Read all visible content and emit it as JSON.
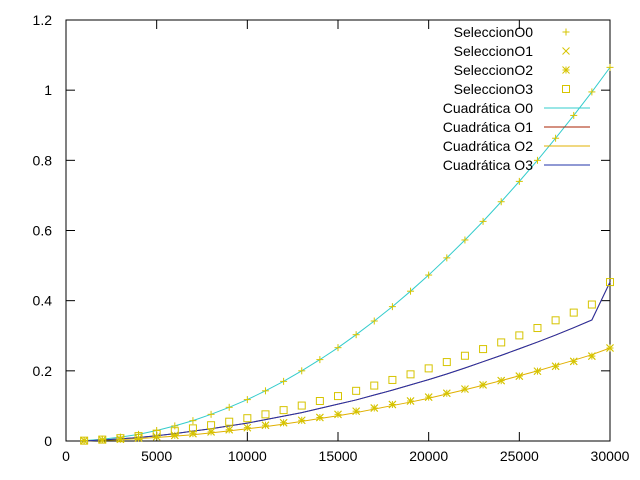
{
  "chart_data": {
    "type": "line",
    "title": "",
    "xlabel": "",
    "ylabel": "",
    "xlim": [
      0,
      30000
    ],
    "ylim": [
      0,
      1.2
    ],
    "grid": false,
    "legend_position": "top-right",
    "x_ticks": [
      0,
      5000,
      10000,
      15000,
      20000,
      25000,
      30000
    ],
    "x_tick_labels": [
      "0",
      "5000",
      "10000",
      "15000",
      "20000",
      "25000",
      "30000"
    ],
    "y_ticks": [
      0,
      0.2,
      0.4,
      0.6,
      0.8,
      1.0,
      1.2
    ],
    "y_tick_labels": [
      "0",
      "0.2",
      "0.4",
      "0.6",
      "0.8",
      "1",
      "1.2"
    ],
    "x": [
      1000,
      2000,
      3000,
      4000,
      5000,
      6000,
      7000,
      8000,
      9000,
      10000,
      11000,
      12000,
      13000,
      14000,
      15000,
      16000,
      17000,
      18000,
      19000,
      20000,
      21000,
      22000,
      23000,
      24000,
      25000,
      26000,
      27000,
      28000,
      29000,
      30000
    ],
    "series": [
      {
        "name": "SeleccionO0",
        "kind": "points",
        "marker": "plus",
        "color": "#d6c400",
        "values": [
          0.001,
          0.005,
          0.011,
          0.019,
          0.03,
          0.043,
          0.058,
          0.076,
          0.096,
          0.118,
          0.143,
          0.17,
          0.2,
          0.232,
          0.266,
          0.303,
          0.342,
          0.383,
          0.427,
          0.473,
          0.522,
          0.573,
          0.626,
          0.682,
          0.74,
          0.8,
          0.863,
          0.928,
          0.995,
          1.065
        ]
      },
      {
        "name": "SeleccionO1",
        "kind": "points",
        "marker": "cross",
        "color": "#d6c400",
        "values": [
          0.001,
          0.003,
          0.005,
          0.008,
          0.012,
          0.016,
          0.021,
          0.026,
          0.032,
          0.038,
          0.045,
          0.052,
          0.059,
          0.067,
          0.076,
          0.085,
          0.094,
          0.104,
          0.114,
          0.125,
          0.136,
          0.148,
          0.16,
          0.172,
          0.185,
          0.199,
          0.213,
          0.227,
          0.242,
          0.265
        ]
      },
      {
        "name": "SeleccionO2",
        "kind": "points",
        "marker": "star",
        "color": "#d6c400",
        "values": [
          0.001,
          0.003,
          0.005,
          0.008,
          0.012,
          0.016,
          0.021,
          0.026,
          0.032,
          0.038,
          0.045,
          0.052,
          0.059,
          0.067,
          0.076,
          0.085,
          0.094,
          0.104,
          0.114,
          0.125,
          0.136,
          0.148,
          0.16,
          0.172,
          0.185,
          0.199,
          0.213,
          0.227,
          0.242,
          0.265
        ]
      },
      {
        "name": "SeleccionO3",
        "kind": "points",
        "marker": "square",
        "color": "#d6c400",
        "values": [
          0.001,
          0.004,
          0.008,
          0.014,
          0.021,
          0.028,
          0.036,
          0.045,
          0.055,
          0.065,
          0.076,
          0.088,
          0.101,
          0.114,
          0.128,
          0.143,
          0.158,
          0.174,
          0.19,
          0.207,
          0.225,
          0.243,
          0.262,
          0.281,
          0.301,
          0.322,
          0.344,
          0.366,
          0.389,
          0.453
        ]
      },
      {
        "name": "Cuadrática O0",
        "kind": "line",
        "color": "#33cccc",
        "coef": [
          0.0,
          0.0,
          1.183e-09
        ],
        "values": [
          0.001,
          0.005,
          0.011,
          0.019,
          0.03,
          0.043,
          0.058,
          0.076,
          0.096,
          0.118,
          0.143,
          0.17,
          0.2,
          0.232,
          0.266,
          0.303,
          0.342,
          0.383,
          0.427,
          0.473,
          0.522,
          0.573,
          0.626,
          0.682,
          0.74,
          0.8,
          0.863,
          0.928,
          0.995,
          1.065
        ]
      },
      {
        "name": "Cuadrática O1",
        "kind": "line",
        "color": "#aa2200",
        "values": [
          0.0,
          0.003,
          0.006,
          0.01,
          0.015,
          0.021,
          0.028,
          0.035,
          0.043,
          0.051,
          0.061,
          0.071,
          0.081,
          0.093,
          0.105,
          0.117,
          0.131,
          0.145,
          0.16,
          0.175,
          0.191,
          0.208,
          0.226,
          0.244,
          0.263,
          0.282,
          0.302,
          0.323,
          0.345,
          0.453
        ]
      },
      {
        "name": "Cuadrática O2",
        "kind": "line",
        "color": "#e0b000",
        "values": [
          0.0,
          0.002,
          0.004,
          0.007,
          0.01,
          0.014,
          0.018,
          0.023,
          0.029,
          0.035,
          0.041,
          0.048,
          0.056,
          0.064,
          0.072,
          0.081,
          0.091,
          0.101,
          0.111,
          0.122,
          0.134,
          0.146,
          0.159,
          0.172,
          0.186,
          0.2,
          0.215,
          0.23,
          0.246,
          0.265
        ]
      },
      {
        "name": "Cuadrática O3",
        "kind": "line",
        "color": "#2233aa",
        "values": [
          0.0,
          0.003,
          0.006,
          0.01,
          0.015,
          0.021,
          0.028,
          0.035,
          0.043,
          0.051,
          0.061,
          0.071,
          0.081,
          0.093,
          0.105,
          0.117,
          0.131,
          0.145,
          0.16,
          0.175,
          0.191,
          0.208,
          0.226,
          0.244,
          0.263,
          0.282,
          0.302,
          0.323,
          0.345,
          0.453
        ]
      }
    ]
  }
}
